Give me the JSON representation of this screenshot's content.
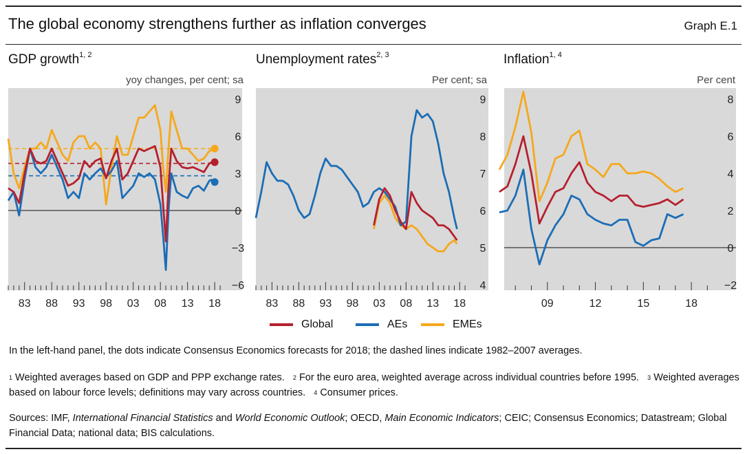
{
  "title": "The global economy strengthens further as inflation converges",
  "graph_number": "Graph E.1",
  "legend": [
    {
      "name": "Global",
      "color": "#b5202e"
    },
    {
      "name": "AEs",
      "color": "#1b6db5"
    },
    {
      "name": "EMEs",
      "color": "#f5a81c"
    }
  ],
  "note": "In the left-hand panel, the dots indicate Consensus Economics forecasts for 2018; the dashed lines indicate 1982–2007 averages.",
  "footnotes": {
    "f1_mark": "1",
    "f1": "Weighted averages based on GDP and PPP exchange rates.",
    "f2_mark": "2",
    "f2": "For the euro area, weighted average across individual countries before 1995.",
    "f3_mark": "3",
    "f3": "Weighted averages based on labour force levels; definitions may vary across countries.",
    "f4_mark": "4",
    "f4": "Consumer prices."
  },
  "sources": {
    "s1": "Sources: IMF, ",
    "s2": "International Financial Statistics",
    "s3": " and ",
    "s4": "World Economic Outlook",
    "s5": "; OECD, ",
    "s6": "Main Economic Indicators",
    "s7": "; CEIC; Consensus Economics; Datastream; Global Financial Data; national data; BIS calculations."
  },
  "chart_data": [
    {
      "type": "line",
      "title": "GDP growth",
      "title_footnotes": "1, 2",
      "ylabel": "yoy changes, per cent; sa",
      "xlim": [
        1980,
        2019.5
      ],
      "ylim": [
        -6,
        9
      ],
      "yticks": [
        -6,
        -3,
        0,
        3,
        6,
        9
      ],
      "xticks": [
        1983,
        1988,
        1993,
        1998,
        2003,
        2008,
        2013,
        2018
      ],
      "xtick_labels": [
        "83",
        "88",
        "93",
        "98",
        "03",
        "08",
        "13",
        "18"
      ],
      "background": "#d9d9d9",
      "series": [
        {
          "name": "Global",
          "color": "#b5202e",
          "x": [
            1980,
            1981,
            1982,
            1983,
            1984,
            1985,
            1986,
            1987,
            1988,
            1989,
            1990,
            1991,
            1992,
            1993,
            1994,
            1995,
            1996,
            1997,
            1998,
            1999,
            2000,
            2001,
            2002,
            2003,
            2004,
            2005,
            2006,
            2007,
            2008,
            2008.5,
            2009,
            2009.5,
            2010,
            2011,
            2012,
            2013,
            2014,
            2015,
            2016,
            2017,
            2017.5
          ],
          "y": [
            1.8,
            1.5,
            0.6,
            3.0,
            5.0,
            4.0,
            3.8,
            4.0,
            5.0,
            4.0,
            3.0,
            2.0,
            2.2,
            2.6,
            4.0,
            3.5,
            4.0,
            4.2,
            2.6,
            4.0,
            5.0,
            2.5,
            3.0,
            4.0,
            5.0,
            4.8,
            5.0,
            5.2,
            3.5,
            0.5,
            -2.5,
            2.0,
            5.0,
            4.0,
            3.5,
            3.4,
            3.5,
            3.3,
            3.1,
            3.8,
            3.9
          ]
        },
        {
          "name": "AEs",
          "color": "#1b6db5",
          "x": [
            1980,
            1981,
            1982,
            1983,
            1984,
            1985,
            1986,
            1987,
            1988,
            1989,
            1990,
            1991,
            1992,
            1993,
            1994,
            1995,
            1996,
            1997,
            1998,
            1999,
            2000,
            2001,
            2002,
            2003,
            2004,
            2005,
            2006,
            2007,
            2008,
            2008.5,
            2009,
            2009.5,
            2010,
            2011,
            2012,
            2013,
            2014,
            2015,
            2016,
            2017,
            2017.5
          ],
          "y": [
            0.8,
            1.5,
            -0.4,
            2.5,
            5.0,
            3.5,
            3.0,
            3.5,
            4.5,
            3.5,
            2.5,
            1.0,
            1.5,
            1.0,
            3.0,
            2.5,
            3.0,
            3.4,
            2.7,
            3.2,
            4.0,
            1.0,
            1.5,
            2.0,
            3.0,
            2.7,
            3.0,
            2.5,
            0.5,
            -2.0,
            -4.8,
            0.0,
            3.0,
            1.5,
            1.2,
            1.0,
            1.8,
            2.0,
            1.6,
            2.4,
            2.5
          ]
        },
        {
          "name": "EMEs",
          "color": "#f5a81c",
          "x": [
            1980,
            1981,
            1982,
            1983,
            1984,
            1985,
            1986,
            1987,
            1988,
            1989,
            1990,
            1991,
            1992,
            1993,
            1994,
            1995,
            1996,
            1997,
            1998,
            1999,
            2000,
            2001,
            2002,
            2003,
            2004,
            2005,
            2006,
            2007,
            2008,
            2008.5,
            2009,
            2009.5,
            2010,
            2011,
            2012,
            2013,
            2014,
            2015,
            2016,
            2017,
            2017.5
          ],
          "y": [
            5.8,
            3.0,
            1.8,
            3.5,
            5.0,
            5.0,
            5.5,
            5.0,
            6.5,
            5.5,
            4.5,
            4.0,
            5.5,
            6.0,
            6.0,
            5.0,
            5.5,
            5.0,
            0.5,
            3.5,
            6.0,
            4.5,
            4.5,
            6.0,
            7.5,
            7.5,
            8.0,
            8.5,
            6.5,
            3.5,
            1.5,
            5.0,
            8.0,
            6.5,
            5.0,
            5.0,
            4.5,
            4.0,
            4.2,
            4.8,
            4.9
          ]
        }
      ],
      "averages": [
        {
          "name": "Global",
          "value": 3.8
        },
        {
          "name": "AEs",
          "value": 2.8
        },
        {
          "name": "EMEs",
          "value": 5.0
        }
      ],
      "forecasts_2018": [
        {
          "name": "Global",
          "value": 3.9
        },
        {
          "name": "AEs",
          "value": 2.3
        },
        {
          "name": "EMEs",
          "value": 5.0
        }
      ]
    },
    {
      "type": "line",
      "title": "Unemployment rates",
      "title_footnotes": "2, 3",
      "ylabel": "Per cent; sa",
      "xlim": [
        1980,
        2019.5
      ],
      "ylim": [
        4,
        9
      ],
      "yticks": [
        4,
        5,
        6,
        7,
        8,
        9
      ],
      "xticks": [
        1983,
        1988,
        1993,
        1998,
        2003,
        2008,
        2013,
        2018
      ],
      "xtick_labels": [
        "83",
        "88",
        "93",
        "98",
        "03",
        "08",
        "13",
        "18"
      ],
      "background": "#d9d9d9",
      "series": [
        {
          "name": "Global",
          "color": "#b5202e",
          "x": [
            2002,
            2003,
            2004,
            2005,
            2006,
            2007,
            2008,
            2009,
            2010,
            2011,
            2012,
            2013,
            2014,
            2015,
            2016,
            2017,
            2017.5
          ],
          "y": [
            5.6,
            6.3,
            6.6,
            6.4,
            6.0,
            5.7,
            5.5,
            6.5,
            6.2,
            6.0,
            5.9,
            5.8,
            5.6,
            5.6,
            5.5,
            5.3,
            5.2
          ]
        },
        {
          "name": "AEs",
          "color": "#1b6db5",
          "x": [
            1980,
            1981,
            1982,
            1983,
            1984,
            1985,
            1986,
            1987,
            1988,
            1989,
            1990,
            1991,
            1992,
            1993,
            1994,
            1995,
            1996,
            1997,
            1998,
            1999,
            2000,
            2001,
            2002,
            2003,
            2004,
            2005,
            2006,
            2007,
            2008,
            2009,
            2010,
            2011,
            2012,
            2013,
            2014,
            2015,
            2016,
            2017,
            2017.5
          ],
          "y": [
            5.8,
            6.5,
            7.3,
            7.0,
            6.8,
            6.8,
            6.7,
            6.4,
            6.0,
            5.8,
            5.9,
            6.4,
            7.0,
            7.4,
            7.2,
            7.2,
            7.1,
            6.9,
            6.7,
            6.5,
            6.1,
            6.2,
            6.5,
            6.6,
            6.5,
            6.3,
            6.1,
            5.6,
            5.7,
            8.0,
            8.7,
            8.5,
            8.6,
            8.4,
            7.8,
            7.0,
            6.5,
            5.8,
            5.5
          ]
        },
        {
          "name": "EMEs",
          "color": "#f5a81c",
          "x": [
            2002,
            2003,
            2004,
            2005,
            2006,
            2007,
            2008,
            2009,
            2010,
            2011,
            2012,
            2013,
            2014,
            2015,
            2016,
            2017,
            2017.5
          ],
          "y": [
            5.5,
            6.2,
            6.4,
            6.2,
            5.8,
            5.6,
            5.5,
            5.6,
            5.5,
            5.3,
            5.1,
            5.0,
            4.9,
            4.9,
            5.1,
            5.2,
            5.1
          ]
        }
      ]
    },
    {
      "type": "line",
      "title": "Inflation",
      "title_footnotes": "1, 4",
      "ylabel": "Per cent",
      "xlim": [
        2006.3,
        2019.5
      ],
      "ylim": [
        -2,
        8
      ],
      "yticks": [
        -2,
        0,
        2,
        4,
        6,
        8
      ],
      "xticks": [
        2009,
        2012,
        2015,
        2018
      ],
      "xtick_labels": [
        "09",
        "12",
        "15",
        "18"
      ],
      "background": "#d9d9d9",
      "series": [
        {
          "name": "Global",
          "color": "#b5202e",
          "x": [
            2006.0,
            2006.5,
            2007.0,
            2007.5,
            2008.0,
            2008.5,
            2009.0,
            2009.5,
            2010.0,
            2010.5,
            2011.0,
            2011.5,
            2012.0,
            2012.5,
            2013.0,
            2013.5,
            2014.0,
            2014.5,
            2015.0,
            2015.5,
            2016.0,
            2016.5,
            2017.0,
            2017.5
          ],
          "y": [
            3.0,
            3.3,
            4.5,
            6.0,
            4.0,
            1.3,
            2.2,
            3.0,
            3.2,
            4.0,
            4.6,
            3.5,
            3.0,
            2.8,
            2.5,
            2.8,
            2.8,
            2.3,
            2.2,
            2.3,
            2.4,
            2.6,
            2.3,
            2.6
          ]
        },
        {
          "name": "AEs",
          "color": "#1b6db5",
          "x": [
            2006.0,
            2006.5,
            2007.0,
            2007.5,
            2008.0,
            2008.5,
            2009.0,
            2009.5,
            2010.0,
            2010.5,
            2011.0,
            2011.5,
            2012.0,
            2012.5,
            2013.0,
            2013.5,
            2014.0,
            2014.5,
            2015.0,
            2015.5,
            2016.0,
            2016.5,
            2017.0,
            2017.5
          ],
          "y": [
            1.9,
            2.0,
            2.8,
            4.2,
            1.0,
            -0.9,
            0.4,
            1.2,
            1.8,
            2.8,
            2.6,
            1.8,
            1.5,
            1.3,
            1.2,
            1.5,
            1.5,
            0.3,
            0.1,
            0.4,
            0.5,
            1.8,
            1.6,
            1.8
          ]
        },
        {
          "name": "EMEs",
          "color": "#f5a81c",
          "x": [
            2006.0,
            2006.5,
            2007.0,
            2007.5,
            2008.0,
            2008.5,
            2009.0,
            2009.5,
            2010.0,
            2010.5,
            2011.0,
            2011.5,
            2012.0,
            2012.5,
            2013.0,
            2013.5,
            2014.0,
            2014.5,
            2015.0,
            2015.5,
            2016.0,
            2016.5,
            2017.0,
            2017.5
          ],
          "y": [
            4.2,
            5.0,
            6.5,
            8.4,
            6.2,
            2.5,
            3.5,
            4.8,
            5.0,
            6.0,
            6.3,
            4.5,
            4.2,
            3.8,
            4.5,
            4.5,
            4.0,
            4.0,
            4.1,
            4.0,
            3.7,
            3.3,
            3.0,
            3.2
          ]
        }
      ]
    }
  ]
}
